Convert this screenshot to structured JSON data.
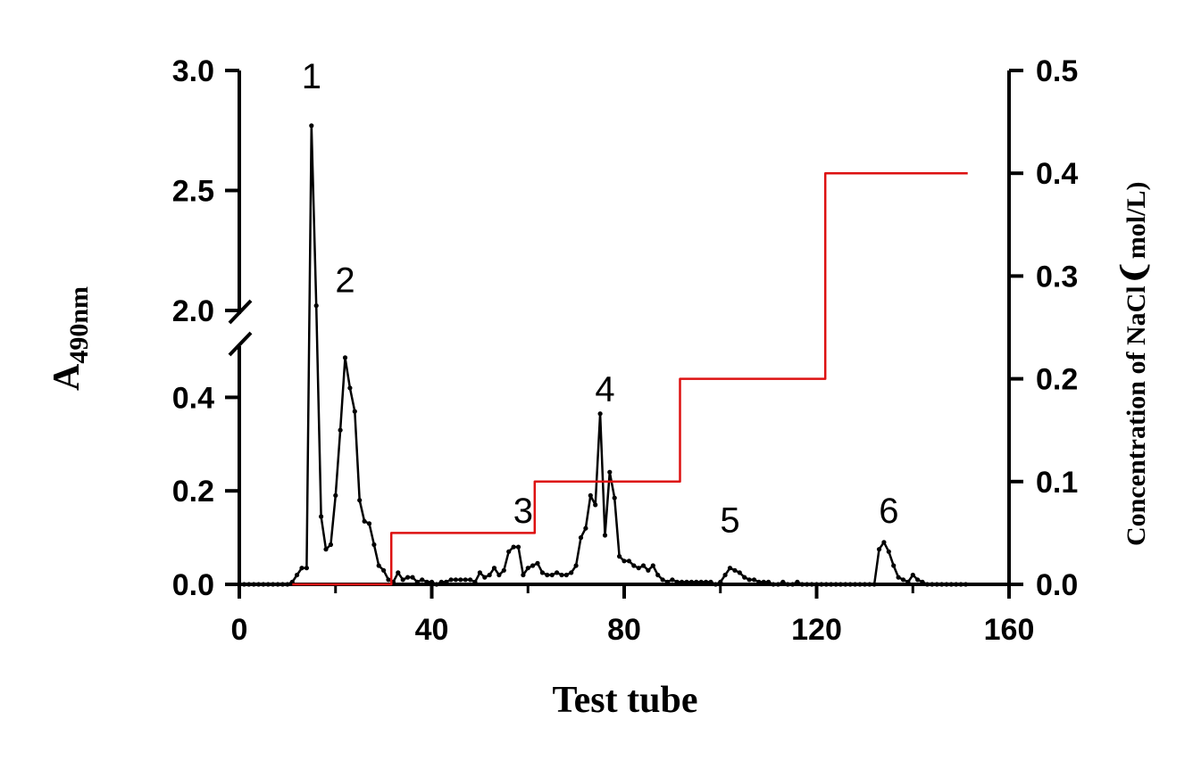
{
  "chart_data": {
    "type": "line",
    "xlabel": "Test tube",
    "ylabel": {
      "main": "A",
      "subscript": "490nm"
    },
    "ylabel_right": {
      "before": "Concentration of NaCl",
      "bracket": "❨",
      "after": "mol/L)"
    },
    "xlim": [
      0,
      160
    ],
    "x_ticks": [
      0,
      40,
      80,
      120,
      160
    ],
    "x_tick_labels": [
      "0",
      "40",
      "80",
      "120",
      "160"
    ],
    "ylim_left_lower": [
      0,
      0.5
    ],
    "ylim_left_upper": [
      2.0,
      3.0
    ],
    "y_left_ticks": [
      0.0,
      0.2,
      0.4,
      2.0,
      2.5,
      3.0
    ],
    "y_left_tick_labels": [
      "0.0",
      "0.2",
      "0.4",
      "2.0",
      "2.5",
      "3.0"
    ],
    "axis_break": "left y-axis break between 0.5 and 2.0",
    "ylim_right": [
      0,
      0.5
    ],
    "y_right_ticks": [
      0.0,
      0.1,
      0.2,
      0.3,
      0.4,
      0.5
    ],
    "y_right_tick_labels": [
      "0.0",
      "0.1",
      "0.2",
      "0.3",
      "0.4",
      "0.5"
    ],
    "grid": false,
    "peak_labels": [
      {
        "text": "1",
        "x": 15,
        "y": 3.0
      },
      {
        "text": "2",
        "x": 22,
        "y": 2.15
      },
      {
        "text": "3",
        "x": 59,
        "y": 0.17
      },
      {
        "text": "4",
        "x": 76,
        "y": 0.43
      },
      {
        "text": "5",
        "x": 102,
        "y": 0.15
      },
      {
        "text": "6",
        "x": 135,
        "y": 0.17
      }
    ],
    "series": [
      {
        "axis": "left",
        "color": "#000000",
        "markers": true,
        "x": [
          0,
          1,
          2,
          3,
          4,
          5,
          6,
          7,
          8,
          9,
          10,
          11,
          12,
          13,
          14,
          15,
          16,
          17,
          18,
          19,
          20,
          21,
          22,
          23,
          24,
          25,
          26,
          27,
          28,
          29,
          30,
          31,
          32,
          33,
          34,
          35,
          36,
          37,
          38,
          39,
          40,
          41,
          42,
          43,
          44,
          45,
          46,
          47,
          48,
          49,
          50,
          51,
          52,
          53,
          54,
          55,
          56,
          57,
          58,
          59,
          60,
          61,
          62,
          63,
          64,
          65,
          66,
          67,
          68,
          69,
          70,
          71,
          72,
          73,
          74,
          75,
          76,
          77,
          78,
          79,
          80,
          81,
          82,
          83,
          84,
          85,
          86,
          87,
          88,
          89,
          90,
          91,
          92,
          93,
          94,
          95,
          96,
          97,
          98,
          99,
          100,
          101,
          102,
          103,
          104,
          105,
          106,
          107,
          108,
          109,
          110,
          111,
          112,
          113,
          114,
          115,
          116,
          117,
          118,
          119,
          120,
          121,
          122,
          123,
          124,
          125,
          126,
          127,
          128,
          129,
          130,
          131,
          132,
          133,
          134,
          135,
          136,
          137,
          138,
          139,
          140,
          141,
          142,
          143,
          144,
          145,
          146,
          147,
          148,
          149,
          150,
          151
        ],
        "y": [
          0,
          0,
          0,
          0,
          0,
          0,
          0,
          0,
          0,
          0,
          0,
          0.005,
          0.02,
          0.035,
          0.035,
          2.77,
          2.02,
          0.145,
          0.075,
          0.085,
          0.19,
          0.33,
          0.485,
          0.42,
          0.37,
          0.18,
          0.135,
          0.13,
          0.085,
          0.04,
          0.03,
          0.01,
          0.005,
          0.025,
          0.01,
          0.015,
          0.015,
          0.005,
          0.01,
          0.005,
          0.005,
          0,
          0.005,
          0.005,
          0.01,
          0.01,
          0.01,
          0.01,
          0.01,
          0.005,
          0.025,
          0.015,
          0.02,
          0.035,
          0.02,
          0.03,
          0.07,
          0.08,
          0.08,
          0.02,
          0.035,
          0.04,
          0.045,
          0.025,
          0.02,
          0.02,
          0.025,
          0.02,
          0.02,
          0.025,
          0.04,
          0.1,
          0.12,
          0.19,
          0.17,
          0.365,
          0.105,
          0.24,
          0.185,
          0.06,
          0.05,
          0.05,
          0.04,
          0.035,
          0.04,
          0.03,
          0.04,
          0.02,
          0.01,
          0.005,
          0.01,
          0.005,
          0.005,
          0.005,
          0.005,
          0.005,
          0.005,
          0.005,
          0.005,
          0,
          0.005,
          0.02,
          0.035,
          0.03,
          0.025,
          0.015,
          0.01,
          0.01,
          0.005,
          0.005,
          0.005,
          0,
          0,
          0.005,
          0,
          0,
          0.005,
          0,
          0,
          0,
          0,
          0,
          0,
          0,
          0,
          0,
          0,
          0,
          0,
          0,
          0,
          0,
          0,
          0.075,
          0.09,
          0.07,
          0.04,
          0.015,
          0.01,
          0.005,
          0.02,
          0.01,
          0.005,
          0,
          0,
          0,
          0,
          0,
          0,
          0,
          0,
          0
        ]
      },
      {
        "axis": "right",
        "color": "#dd1111",
        "markers": false,
        "x": [
          11,
          31.6,
          31.6,
          61.4,
          61.4,
          91.6,
          91.6,
          121.8,
          121.8,
          151.4
        ],
        "y": [
          0,
          0,
          0.05,
          0.05,
          0.1,
          0.1,
          0.2,
          0.2,
          0.4,
          0.4
        ]
      }
    ]
  }
}
